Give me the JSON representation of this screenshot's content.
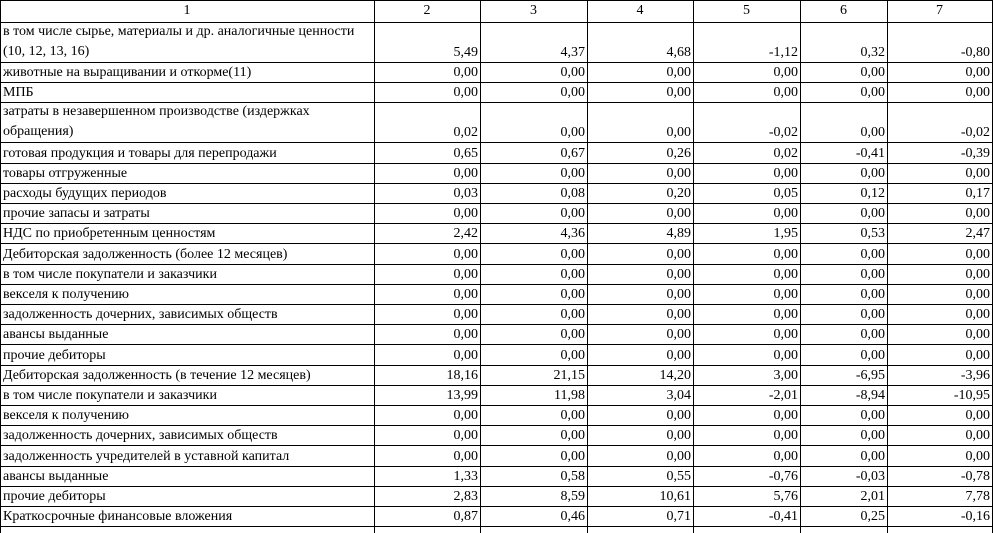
{
  "header": [
    "1",
    "2",
    "3",
    "4",
    "5",
    "6",
    "7"
  ],
  "rows": [
    {
      "label": "в том числе сырье, материалы и др. аналогичные ценности   (10, 12, 13, 16)",
      "values": [
        "5,49",
        "4,37",
        "4,68",
        "-1,12",
        "0,32",
        "-0,80"
      ]
    },
    {
      "label": "животные на выращивании и откорме(11)",
      "values": [
        "0,00",
        "0,00",
        "0,00",
        "0,00",
        "0,00",
        "0,00"
      ]
    },
    {
      "label": "МПБ",
      "values": [
        "0,00",
        "0,00",
        "0,00",
        "0,00",
        "0,00",
        "0,00"
      ]
    },
    {
      "label": "затраты в незавершенном производстве (издержках обращения)",
      "values": [
        "0,02",
        "0,00",
        "0,00",
        "-0,02",
        "0,00",
        "-0,02"
      ]
    },
    {
      "label": "готовая продукция и товары для перепродажи",
      "values": [
        "0,65",
        "0,67",
        "0,26",
        "0,02",
        "-0,41",
        "-0,39"
      ]
    },
    {
      "label": "товары отгруженные",
      "values": [
        "0,00",
        "0,00",
        "0,00",
        "0,00",
        "0,00",
        "0,00"
      ]
    },
    {
      "label": "расходы будущих периодов",
      "values": [
        "0,03",
        "0,08",
        "0,20",
        "0,05",
        "0,12",
        "0,17"
      ]
    },
    {
      "label": "прочие запасы и затраты",
      "values": [
        "0,00",
        "0,00",
        "0,00",
        "0,00",
        "0,00",
        "0,00"
      ]
    },
    {
      "label": "НДС по приобретенным ценностям",
      "values": [
        "2,42",
        "4,36",
        "4,89",
        "1,95",
        "0,53",
        "2,47"
      ]
    },
    {
      "label": "Дебиторская задолженность (более 12 месяцев)",
      "values": [
        "0,00",
        "0,00",
        "0,00",
        "0,00",
        "0,00",
        "0,00"
      ]
    },
    {
      "label": "в том числе покупатели и заказчики",
      "values": [
        "0,00",
        "0,00",
        "0,00",
        "0,00",
        "0,00",
        "0,00"
      ]
    },
    {
      "label": "векселя к получению",
      "values": [
        "0,00",
        "0,00",
        "0,00",
        "0,00",
        "0,00",
        "0,00"
      ]
    },
    {
      "label": "задолженность дочерних, зависимых обществ",
      "values": [
        "0,00",
        "0,00",
        "0,00",
        "0,00",
        "0,00",
        "0,00"
      ]
    },
    {
      "label": "авансы выданные",
      "values": [
        "0,00",
        "0,00",
        "0,00",
        "0,00",
        "0,00",
        "0,00"
      ]
    },
    {
      "label": "прочие дебиторы",
      "values": [
        "0,00",
        "0,00",
        "0,00",
        "0,00",
        "0,00",
        "0,00"
      ]
    },
    {
      "label": "Дебиторская задолженность (в течение 12 месяцев)",
      "values": [
        "18,16",
        "21,15",
        "14,20",
        "3,00",
        "-6,95",
        "-3,96"
      ]
    },
    {
      "label": "в том числе покупатели и заказчики",
      "values": [
        "13,99",
        "11,98",
        "3,04",
        "-2,01",
        "-8,94",
        "-10,95"
      ]
    },
    {
      "label": "векселя к получению",
      "values": [
        "0,00",
        "0,00",
        "0,00",
        "0,00",
        "0,00",
        "0,00"
      ]
    },
    {
      "label": "задолженность дочерних, зависимых обществ",
      "values": [
        "0,00",
        "0,00",
        "0,00",
        "0,00",
        "0,00",
        "0,00"
      ]
    },
    {
      "label": "задолженность учредителей в уставной капитал",
      "values": [
        "0,00",
        "0,00",
        "0,00",
        "0,00",
        "0,00",
        "0,00"
      ]
    },
    {
      "label": "авансы выданные",
      "values": [
        "1,33",
        "0,58",
        "0,55",
        "-0,76",
        "-0,03",
        "-0,78"
      ]
    },
    {
      "label": "прочие дебиторы",
      "values": [
        "2,83",
        "8,59",
        "10,61",
        "5,76",
        "2,01",
        "7,78"
      ]
    },
    {
      "label": "Краткосрочные финансовые вложения",
      "values": [
        "0,87",
        "0,46",
        "0,71",
        "-0,41",
        "0,25",
        "-0,16"
      ]
    }
  ]
}
